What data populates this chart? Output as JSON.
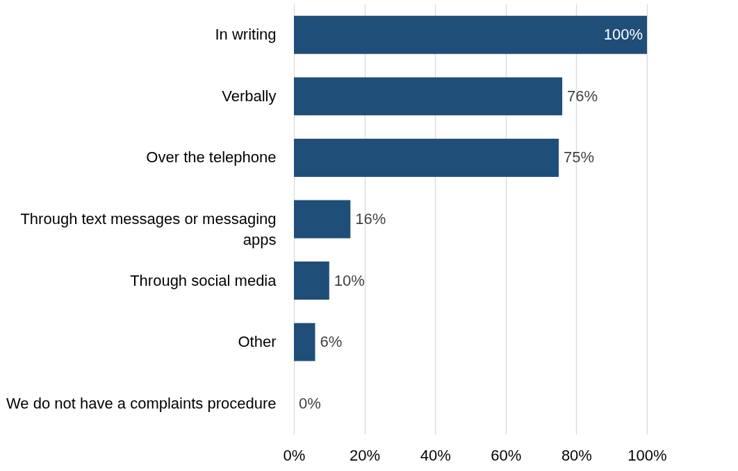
{
  "chart_data": {
    "type": "bar",
    "orientation": "horizontal",
    "categories": [
      "In writing",
      "Verbally",
      "Over the telephone",
      "Through text messages or messaging apps",
      "Through social media",
      "Other",
      "We do not have a complaints procedure"
    ],
    "values": [
      100,
      76,
      75,
      16,
      10,
      6,
      0
    ],
    "value_labels": [
      "100%",
      "76%",
      "75%",
      "16%",
      "10%",
      "6%",
      "0%"
    ],
    "color": "#1f4e79",
    "xlim": [
      0,
      100
    ],
    "xticks": [
      {
        "value": 0,
        "label": "0%"
      },
      {
        "value": 20,
        "label": "20%"
      },
      {
        "value": 40,
        "label": "40%"
      },
      {
        "value": 60,
        "label": "60%"
      },
      {
        "value": 80,
        "label": "80%"
      },
      {
        "value": 100,
        "label": "100%"
      }
    ],
    "grid": "x"
  }
}
